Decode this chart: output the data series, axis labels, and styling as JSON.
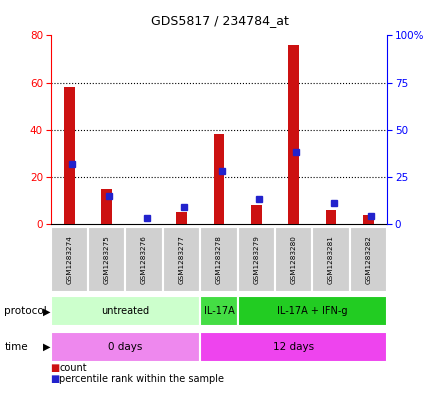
{
  "title": "GDS5817 / 234784_at",
  "samples": [
    "GSM1283274",
    "GSM1283275",
    "GSM1283276",
    "GSM1283277",
    "GSM1283278",
    "GSM1283279",
    "GSM1283280",
    "GSM1283281",
    "GSM1283282"
  ],
  "counts": [
    58,
    15,
    0,
    5,
    38,
    8,
    76,
    6,
    4
  ],
  "percentiles": [
    32,
    15,
    3,
    9,
    28,
    13,
    38,
    11,
    4
  ],
  "ylim_left": [
    0,
    80
  ],
  "ylim_right": [
    0,
    100
  ],
  "yticks_left": [
    0,
    20,
    40,
    60,
    80
  ],
  "yticks_right": [
    0,
    25,
    50,
    75,
    100
  ],
  "yticklabels_right": [
    "0",
    "25",
    "50",
    "75",
    "100%"
  ],
  "bar_color": "#cc1111",
  "percentile_color": "#2222cc",
  "bg_color": "#ffffff",
  "sample_bg": "#d0d0d0",
  "protocol_info": [
    {
      "label": "untreated",
      "start": 0,
      "end": 4,
      "color": "#ccffcc"
    },
    {
      "label": "IL-17A",
      "start": 4,
      "end": 5,
      "color": "#44dd44"
    },
    {
      "label": "IL-17A + IFN-g",
      "start": 5,
      "end": 9,
      "color": "#22cc22"
    }
  ],
  "time_info": [
    {
      "label": "0 days",
      "start": 0,
      "end": 4,
      "color": "#ee88ee"
    },
    {
      "label": "12 days",
      "start": 4,
      "end": 9,
      "color": "#ee44ee"
    }
  ]
}
